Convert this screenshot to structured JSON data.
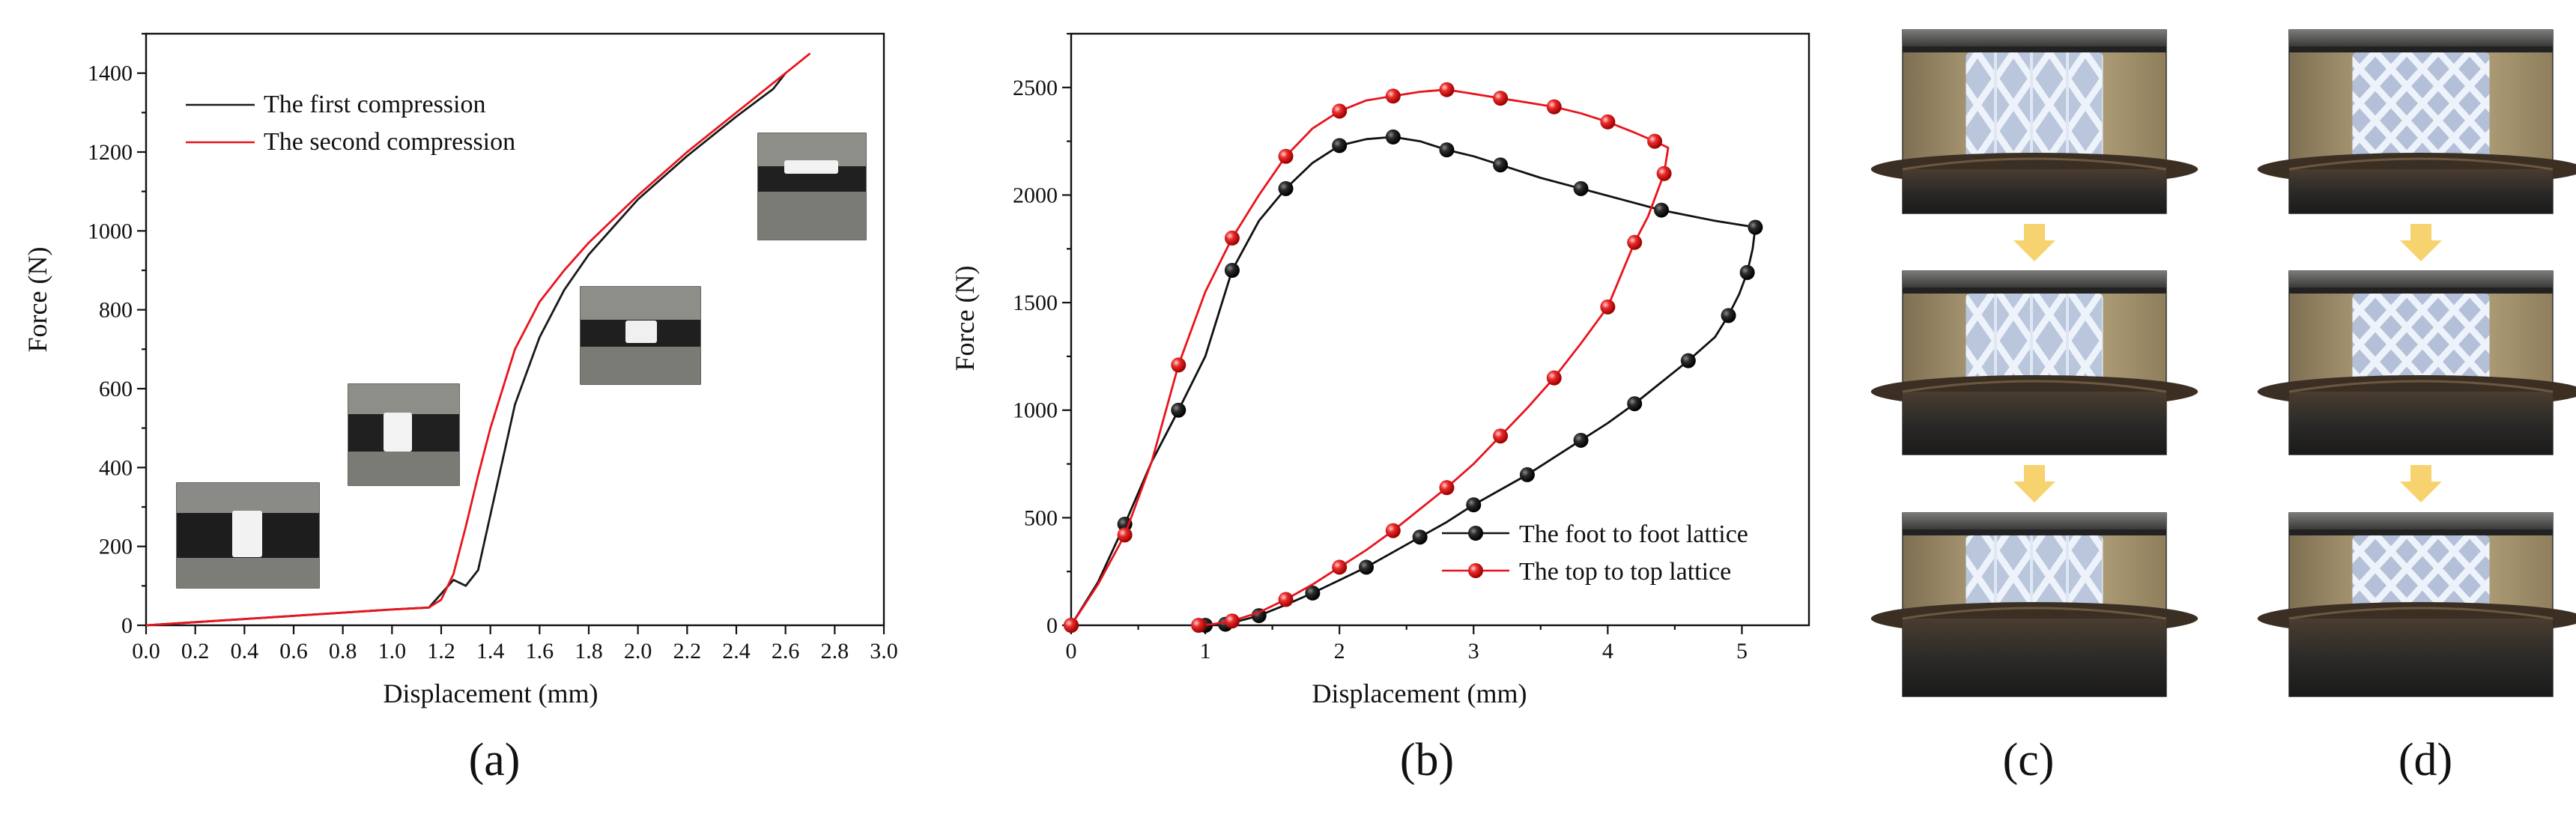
{
  "figure": {
    "panel_labels": [
      "(a)",
      "(b)",
      "(c)",
      "(d)"
    ],
    "arrow_color": "#f6d36e"
  },
  "chart_data": [
    {
      "type": "line",
      "panel": "(a)",
      "title": "",
      "xlabel": "Displacement (mm)",
      "ylabel": "Force (N)",
      "xlim": [
        0.0,
        3.0
      ],
      "ylim": [
        0,
        1500
      ],
      "xticks": [
        "0.0",
        "0.2",
        "0.4",
        "0.6",
        "0.8",
        "1.0",
        "1.2",
        "1.4",
        "1.6",
        "1.8",
        "2.0",
        "2.2",
        "2.4",
        "2.6",
        "2.8",
        "3.0"
      ],
      "yticks": [
        "0",
        "200",
        "400",
        "600",
        "800",
        "1000",
        "1200",
        "1400"
      ],
      "legend_position": "top-left",
      "series": [
        {
          "name": "The first compression",
          "color": "#1a1a1a",
          "marker": "none",
          "x": [
            0,
            0.2,
            0.4,
            0.6,
            0.8,
            1.0,
            1.15,
            1.2,
            1.25,
            1.3,
            1.35,
            1.4,
            1.45,
            1.5,
            1.6,
            1.7,
            1.8,
            1.9,
            2.0,
            2.2,
            2.4,
            2.55,
            2.6
          ],
          "y": [
            0,
            8,
            16,
            24,
            32,
            40,
            45,
            80,
            115,
            100,
            140,
            280,
            420,
            560,
            730,
            850,
            940,
            1010,
            1080,
            1190,
            1290,
            1360,
            1400
          ]
        },
        {
          "name": "The second compression",
          "color": "#e8141c",
          "marker": "none",
          "x": [
            0,
            0.2,
            0.4,
            0.6,
            0.8,
            1.0,
            1.15,
            1.2,
            1.25,
            1.3,
            1.35,
            1.4,
            1.5,
            1.6,
            1.7,
            1.8,
            1.9,
            2.0,
            2.2,
            2.4,
            2.6,
            2.7
          ],
          "y": [
            0,
            8,
            16,
            24,
            32,
            40,
            45,
            65,
            130,
            250,
            380,
            500,
            700,
            820,
            900,
            970,
            1030,
            1090,
            1200,
            1300,
            1400,
            1450
          ]
        }
      ],
      "insets": 4
    },
    {
      "type": "line",
      "panel": "(b)",
      "title": "",
      "xlabel": "Displacement (mm)",
      "ylabel": "Force (N)",
      "xlim": [
        0,
        5.5
      ],
      "ylim": [
        0,
        2750
      ],
      "xticks": [
        "0",
        "1",
        "2",
        "3",
        "4",
        "5"
      ],
      "yticks": [
        "0",
        "500",
        "1000",
        "1500",
        "2000",
        "2500"
      ],
      "legend_position": "bottom-right",
      "series": [
        {
          "name": "The foot to foot lattice",
          "color": "#111111",
          "marker": "sphere",
          "x": [
            0,
            0.2,
            0.4,
            0.6,
            0.8,
            1.0,
            1.2,
            1.4,
            1.6,
            1.8,
            2.0,
            2.2,
            2.4,
            2.6,
            2.8,
            3.0,
            3.2,
            3.5,
            3.8,
            4.1,
            4.4,
            4.8,
            5.1,
            5.08,
            5.04,
            4.98,
            4.9,
            4.8,
            4.6,
            4.4,
            4.2,
            4.0,
            3.8,
            3.6,
            3.4,
            3.2,
            3.0,
            2.8,
            2.6,
            2.4,
            2.2,
            2.0,
            1.8,
            1.6,
            1.4,
            1.25,
            1.15,
            1.0
          ],
          "y": [
            0,
            200,
            470,
            760,
            1000,
            1250,
            1650,
            1880,
            2030,
            2150,
            2230,
            2260,
            2270,
            2250,
            2210,
            2180,
            2140,
            2080,
            2030,
            1980,
            1930,
            1880,
            1850,
            1750,
            1640,
            1540,
            1440,
            1340,
            1230,
            1130,
            1030,
            940,
            860,
            780,
            700,
            630,
            560,
            480,
            410,
            340,
            270,
            210,
            150,
            95,
            45,
            20,
            5,
            0
          ]
        },
        {
          "name": "The top to top lattice",
          "color": "#e8141c",
          "marker": "sphere",
          "x": [
            0,
            0.2,
            0.4,
            0.6,
            0.8,
            1.0,
            1.2,
            1.4,
            1.6,
            1.8,
            2.0,
            2.2,
            2.4,
            2.6,
            2.8,
            3.0,
            3.2,
            3.4,
            3.6,
            3.8,
            4.0,
            4.2,
            4.35,
            4.45,
            4.42,
            4.3,
            4.2,
            4.1,
            4.0,
            3.8,
            3.6,
            3.4,
            3.2,
            3.0,
            2.8,
            2.6,
            2.4,
            2.2,
            2.0,
            1.8,
            1.6,
            1.4,
            1.2,
            1.05,
            0.95
          ],
          "y": [
            0,
            190,
            420,
            760,
            1210,
            1550,
            1800,
            2000,
            2180,
            2310,
            2390,
            2440,
            2460,
            2480,
            2490,
            2470,
            2450,
            2430,
            2410,
            2380,
            2340,
            2290,
            2250,
            2220,
            2100,
            1900,
            1780,
            1630,
            1480,
            1310,
            1150,
            1010,
            880,
            750,
            640,
            540,
            440,
            350,
            270,
            190,
            120,
            60,
            20,
            5,
            0
          ]
        }
      ]
    }
  ],
  "photos": {
    "c": {
      "label": "(c)",
      "frames": 3
    },
    "d": {
      "label": "(d)",
      "frames": 3
    }
  }
}
